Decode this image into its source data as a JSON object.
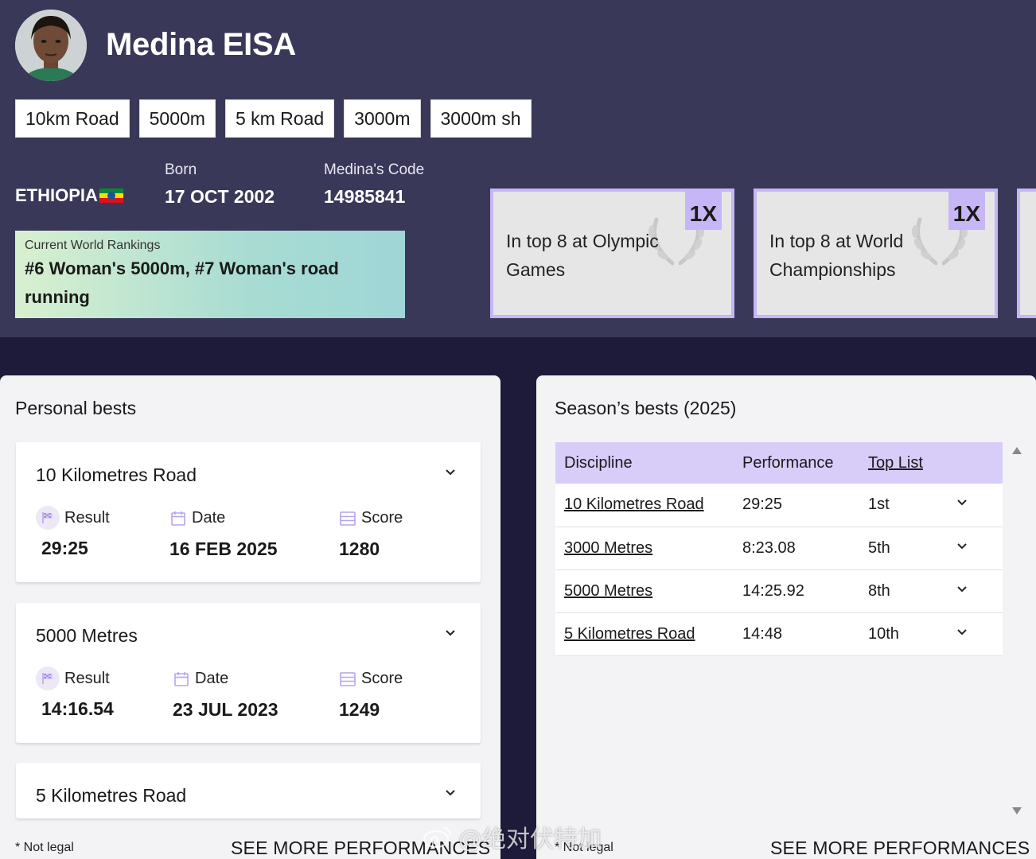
{
  "athlete": {
    "name": "Medina EISA"
  },
  "disciplines": [
    "10km Road",
    "5000m",
    "5 km Road",
    "3000m",
    "3000m sh"
  ],
  "profile": {
    "country": "ETHIOPIA",
    "born_label": "Born",
    "born_value": "17 OCT 2002",
    "code_label": "Medina's Code",
    "code_value": "14985841"
  },
  "ranking": {
    "label": "Current World Rankings",
    "text": "#6 Woman's 5000m, #7 Woman's road running"
  },
  "honours": [
    {
      "count": "1X",
      "text": "In top 8 at Olympic Games"
    },
    {
      "count": "1X",
      "text": "In top 8 at World Championships"
    }
  ],
  "personal_bests": {
    "title": "Personal bests",
    "result_label": "Result",
    "date_label": "Date",
    "score_label": "Score",
    "items": [
      {
        "name": "10 Kilometres Road",
        "result": "29:25",
        "date": "16 FEB 2025",
        "score": "1280"
      },
      {
        "name": "5000 Metres",
        "result": "14:16.54",
        "date": "23 JUL 2023",
        "score": "1249"
      },
      {
        "name": "5 Kilometres Road"
      }
    ],
    "footnote": "* Not legal",
    "see_more": "SEE MORE PERFORMANCES"
  },
  "season_bests": {
    "title": "Season’s bests (2025)",
    "headers": {
      "discipline": "Discipline",
      "performance": "Performance",
      "toplist": "Top List"
    },
    "rows": [
      {
        "discipline": "10 Kilometres Road",
        "performance": "29:25",
        "toplist": "1st"
      },
      {
        "discipline": "3000 Metres",
        "performance": "8:23.08",
        "toplist": "5th"
      },
      {
        "discipline": "5000 Metres",
        "performance": "14:25.92",
        "toplist": "8th"
      },
      {
        "discipline": "5 Kilometres Road",
        "performance": "14:48",
        "toplist": "10th"
      }
    ],
    "footnote": "* Not legal",
    "see_more": "SEE MORE PERFORMANCES"
  },
  "watermark": "@绝对伏特加",
  "colors": {
    "header_bg": "#3a3858",
    "page_bg": "#1d1a3a",
    "accent_lavender": "#c7b6f5",
    "table_header": "#d8ccf8"
  }
}
